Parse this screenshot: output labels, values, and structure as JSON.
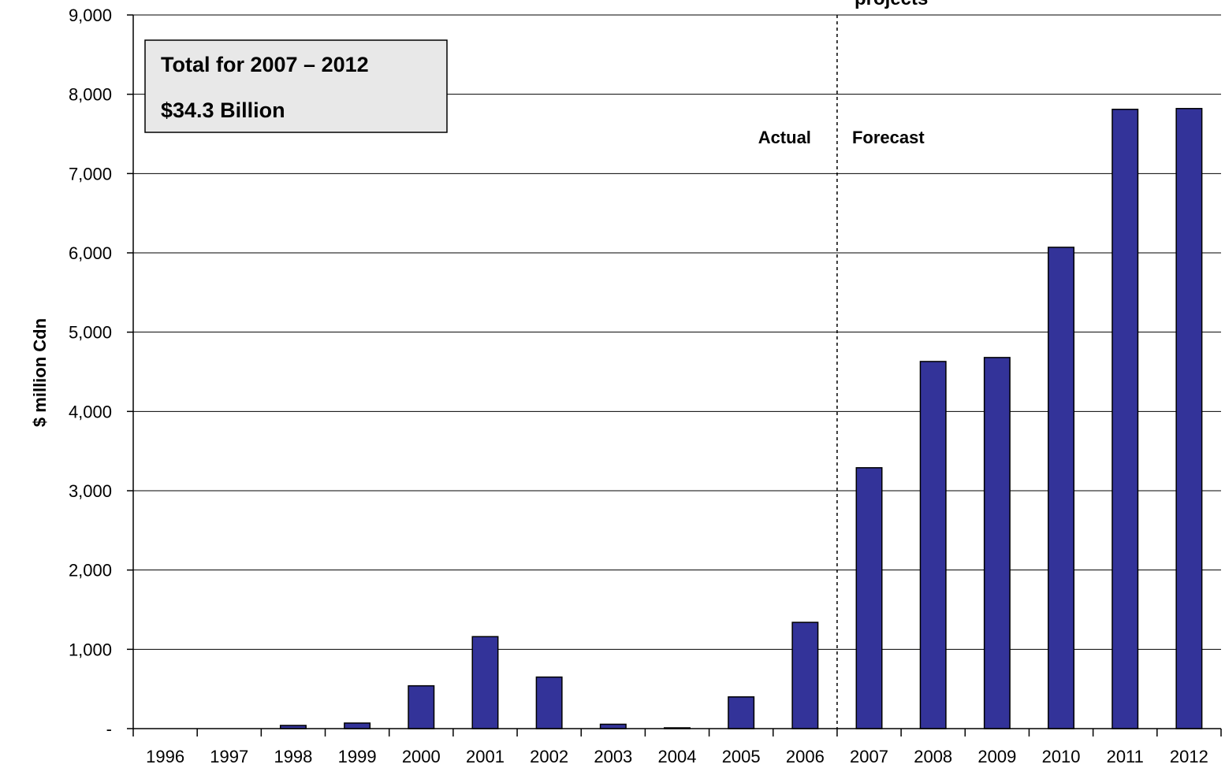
{
  "chart_data": {
    "type": "bar",
    "title_fragment": "projects",
    "xlabel": "",
    "ylabel": "$ million Cdn",
    "ylim": [
      0,
      9000
    ],
    "yticks": [
      0,
      1000,
      2000,
      3000,
      4000,
      5000,
      6000,
      7000,
      8000,
      9000
    ],
    "ytick_labels": [
      "-",
      "1,000",
      "2,000",
      "3,000",
      "4,000",
      "5,000",
      "6,000",
      "7,000",
      "8,000",
      "9,000"
    ],
    "grid": true,
    "categories": [
      "1996",
      "1997",
      "1998",
      "1999",
      "2000",
      "2001",
      "2002",
      "2003",
      "2004",
      "2005",
      "2006",
      "2007",
      "2008",
      "2009",
      "2010",
      "2011",
      "2012"
    ],
    "values": [
      0,
      0,
      40,
      70,
      540,
      1160,
      650,
      55,
      10,
      400,
      1340,
      3290,
      4630,
      4680,
      6070,
      7810,
      7820
    ],
    "bar_color": "#333399",
    "divider_after": "2006",
    "phase_labels": {
      "actual": "Actual",
      "forecast": "Forecast"
    },
    "annotation_box": {
      "line1": "Total for 2007 – 2012",
      "line2": "$34.3 Billion",
      "fill": "#e8e8e8"
    }
  }
}
